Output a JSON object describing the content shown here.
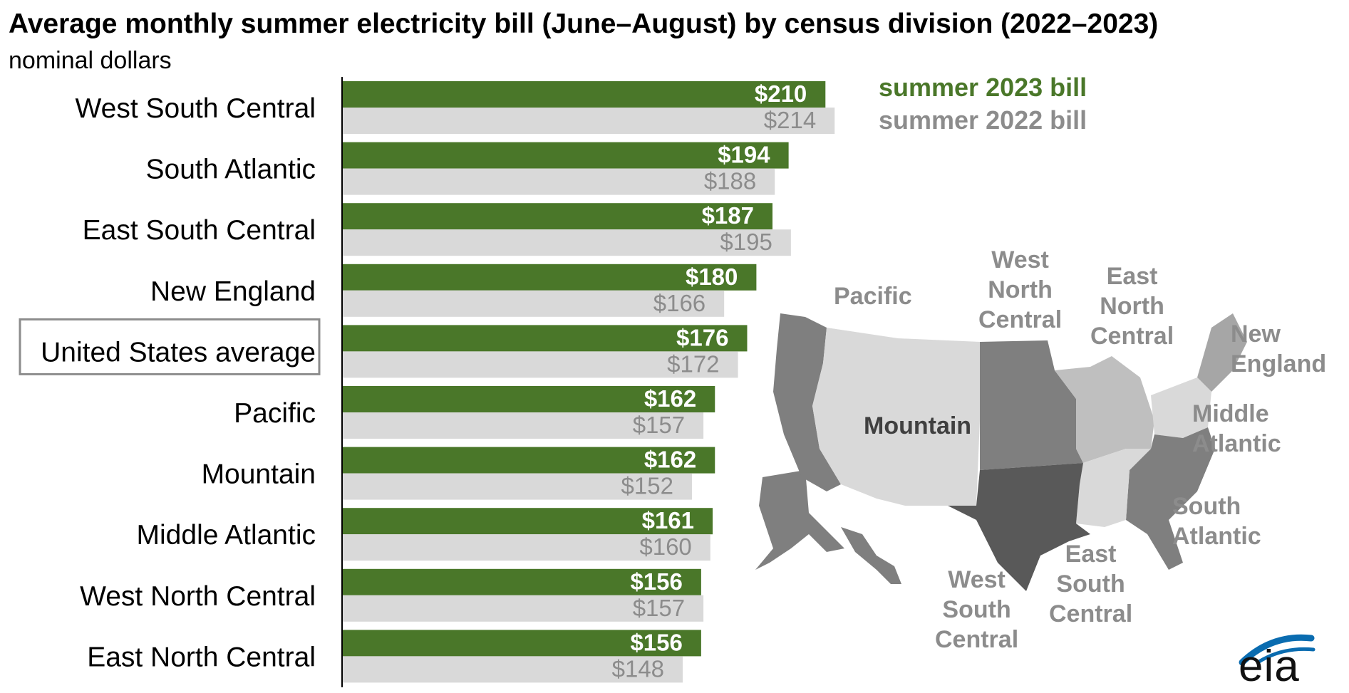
{
  "title": "Average monthly summer electricity bill (June–August) by census division (2022–2023)",
  "subtitle": "nominal dollars",
  "legend": {
    "label_2023": "summer 2023 bill",
    "label_2022": "summer 2022 bill"
  },
  "colors": {
    "bar_2023": "#4a7729",
    "bar_2022": "#d9d9d9",
    "label_2022": "#8c8c8c",
    "highlight_border": "#8c8c8c"
  },
  "chart_data": {
    "type": "bar",
    "orientation": "horizontal",
    "value_prefix": "$",
    "categories": [
      "West South Central",
      "South Atlantic",
      "East South Central",
      "New England",
      "United States average",
      "Pacific",
      "Mountain",
      "Middle Atlantic",
      "West North Central",
      "East North Central"
    ],
    "series": [
      {
        "name": "summer 2023 bill",
        "values": [
          210,
          194,
          187,
          180,
          176,
          162,
          162,
          161,
          156,
          156
        ]
      },
      {
        "name": "summer 2022 bill",
        "values": [
          214,
          188,
          195,
          166,
          172,
          157,
          152,
          160,
          157,
          148
        ]
      }
    ],
    "highlighted_category": "United States average",
    "grid": false
  },
  "map": {
    "labels": [
      "Pacific",
      "Mountain",
      "West\nNorth\nCentral",
      "East\nNorth\nCentral",
      "New\nEngland",
      "Middle\nAtlantic",
      "South\nAtlantic",
      "East\nSouth\nCentral",
      "West\nSouth\nCentral"
    ],
    "region_colors": {
      "pacific": "#7f7f7f",
      "mountain": "#d9d9d9",
      "west-north-central": "#7f7f7f",
      "east-north-central": "#bfbfbf",
      "new-england": "#a6a6a6",
      "middle-atlantic": "#d9d9d9",
      "south-atlantic": "#7f7f7f",
      "east-south-central": "#d9d9d9",
      "west-south-central": "#595959"
    }
  },
  "logo_text": "eia"
}
